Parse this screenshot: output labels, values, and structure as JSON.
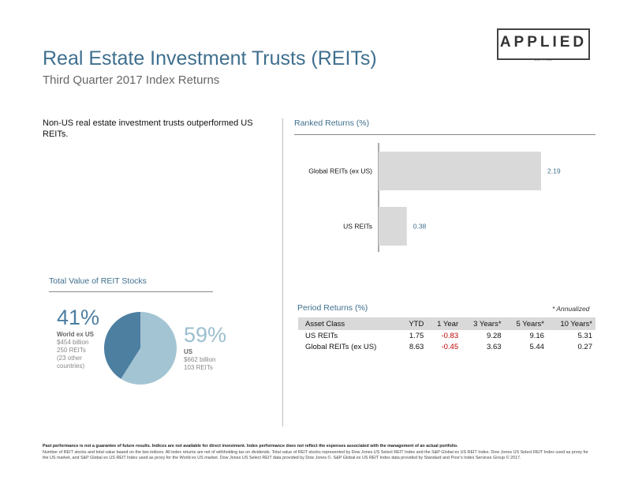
{
  "header": {
    "title": "Real Estate Investment Trusts (REITs)",
    "subtitle": "Third Quarter 2017 Index Returns"
  },
  "logo": {
    "word": "APPLIED",
    "sub": "CAPITAL"
  },
  "summary": "Non-US real estate investment trusts outperformed US REITs.",
  "ranked": {
    "title": "Ranked Returns (%)"
  },
  "total_value": {
    "title": "Total Value of REIT Stocks",
    "world": {
      "pct": "41%",
      "name": "World ex US",
      "line1": "$454 billion",
      "line2": "250 REITs",
      "line3": "(23 other",
      "line4": "countries)"
    },
    "us": {
      "pct": "59%",
      "name": "US",
      "line1": "$662 billion",
      "line2": "103 REITs"
    }
  },
  "period": {
    "title": "Period Returns (%)",
    "note": "* Annualized",
    "headers": [
      "Asset Class",
      "YTD",
      "1 Year",
      "3 Years*",
      "5 Years*",
      "10 Years*"
    ],
    "rows": [
      [
        "US REITs",
        "1.75",
        "-0.83",
        "9.28",
        "9.16",
        "5.31"
      ],
      [
        "Global REITs (ex US)",
        "8.63",
        "-0.45",
        "3.63",
        "5.44",
        "0.27"
      ]
    ]
  },
  "footer": {
    "bold": "Past performance is not a guarantee of future results. Indices are not available for direct investment. Index performance does not reflect the expenses associated with the management of an actual portfolio.",
    "text": "Number of REIT stocks and total value based on the two indices. All index returns are net of withholding tax on dividends. Total value of REIT stocks represented by Dow Jones US Select REIT Index and the S&P Global ex US REIT Index. Dow Jones US Select REIT Index used as proxy for the US market, and S&P Global ex US REIT Index used as proxy for the World ex US market. Dow Jones US Select REIT data provided by Dow Jones ©. S&P Global ex US REIT Index data provided by Standard and Poor's Index Services Group © 2017."
  },
  "colors": {
    "title": "#3f6f8e",
    "bar": "#d9d9d9",
    "bar_label": "#3f6f8e",
    "pie_world": "#4d7fa1",
    "pie_us": "#a3c4d3",
    "negative": "#c00000"
  },
  "chart_data": [
    {
      "type": "bar",
      "orientation": "horizontal",
      "title": "Ranked Returns (%)",
      "categories": [
        "Global REITs (ex US)",
        "US REITs"
      ],
      "values": [
        2.19,
        0.38
      ],
      "value_labels": [
        "2.19",
        "0.38"
      ],
      "xlim": [
        0,
        2.5
      ],
      "grid": false
    },
    {
      "type": "pie",
      "title": "Total Value of REIT Stocks",
      "labels": [
        "World ex US",
        "US"
      ],
      "values": [
        41,
        59
      ]
    },
    {
      "type": "table",
      "title": "Period Returns (%)",
      "columns": [
        "Asset Class",
        "YTD",
        "1 Year",
        "3 Years*",
        "5 Years*",
        "10 Years*"
      ],
      "rows": [
        [
          "US REITs",
          1.75,
          -0.83,
          9.28,
          9.16,
          5.31
        ],
        [
          "Global REITs (ex US)",
          8.63,
          -0.45,
          3.63,
          5.44,
          0.27
        ]
      ]
    }
  ]
}
